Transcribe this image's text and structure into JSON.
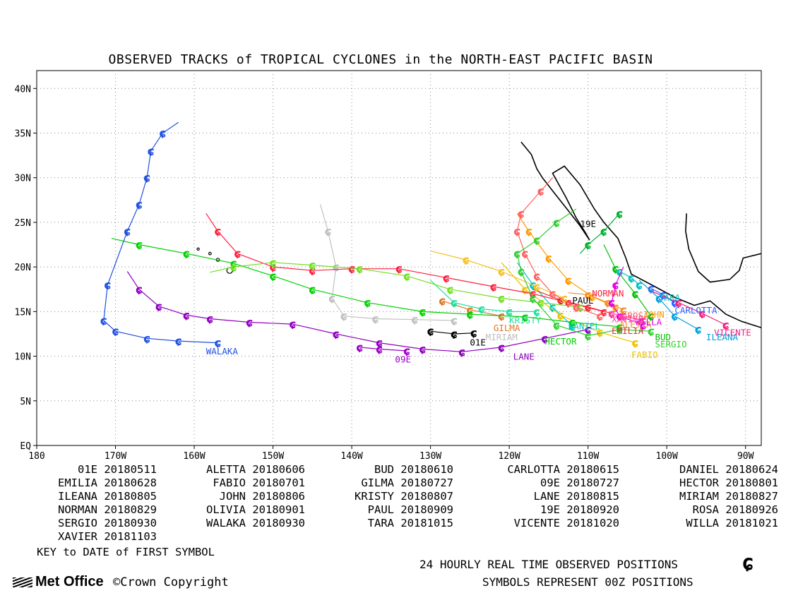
{
  "chart_data": {
    "type": "line",
    "title": "OBSERVED TRACKS of TROPICAL CYCLONES in the NORTH-EAST PACIFIC BASIN",
    "x_ticks": [
      "180",
      "170W",
      "160W",
      "150W",
      "140W",
      "130W",
      "120W",
      "110W",
      "100W",
      "90W"
    ],
    "y_ticks": [
      "EQ",
      "5N",
      "10N",
      "15N",
      "20N",
      "25N",
      "30N",
      "35N",
      "40N"
    ],
    "xlim": [
      -180,
      -88
    ],
    "ylim": [
      0,
      42
    ],
    "grid": true,
    "legend_placement": "below",
    "series": [
      {
        "name": "01E",
        "date": "20180511",
        "color": "#000000",
        "points": [
          [
            -130.0,
            12.8
          ],
          [
            -127.0,
            12.5
          ],
          [
            -124.5,
            12.6
          ]
        ]
      },
      {
        "name": "ALETTA",
        "date": "20180606",
        "color": "#f28c28",
        "points": [
          [
            -105.5,
            15.2
          ],
          [
            -107.5,
            16.0
          ],
          [
            -110.0,
            16.9
          ],
          [
            -112.5,
            17.1
          ]
        ]
      },
      {
        "name": "BUD",
        "date": "20180610",
        "color": "#00c000",
        "points": [
          [
            -102.0,
            14.5
          ],
          [
            -104.0,
            17.0
          ],
          [
            -106.5,
            19.8
          ],
          [
            -108.0,
            22.5
          ]
        ]
      },
      {
        "name": "CARLOTTA",
        "date": "20180615",
        "color": "#3060ff",
        "points": [
          [
            -99.0,
            16.0
          ],
          [
            -100.5,
            16.9
          ],
          [
            -102.0,
            17.6
          ]
        ]
      },
      {
        "name": "DANIEL",
        "date": "20180624",
        "color": "#00c8c8",
        "points": [
          [
            -112.0,
            13.4
          ],
          [
            -114.5,
            15.5
          ],
          [
            -117.0,
            18.0
          ],
          [
            -119.0,
            20.5
          ]
        ]
      },
      {
        "name": "EMILIA",
        "date": "20180628",
        "color": "#e03030",
        "points": [
          [
            -107.0,
            14.8
          ],
          [
            -110.0,
            15.5
          ],
          [
            -113.5,
            16.3
          ],
          [
            -117.0,
            17.5
          ]
        ]
      },
      {
        "name": "FABIO",
        "date": "20180701",
        "color": "#f0c000",
        "points": [
          [
            -104.0,
            11.5
          ],
          [
            -108.5,
            12.7
          ],
          [
            -113.5,
            14.6
          ],
          [
            -118.0,
            17.5
          ],
          [
            -121.0,
            20.5
          ]
        ]
      },
      {
        "name": "GILMA",
        "date": "20180727",
        "color": "#e07828",
        "points": [
          [
            -121.0,
            14.5
          ],
          [
            -125.0,
            15.2
          ],
          [
            -128.5,
            16.2
          ]
        ]
      },
      {
        "name": "09E",
        "date": "20180727",
        "color": "#a000c8",
        "points": [
          [
            -133.0,
            10.6
          ],
          [
            -136.5,
            10.8
          ],
          [
            -139.0,
            11.0
          ]
        ]
      },
      {
        "name": "HECTOR",
        "date": "20180801",
        "color": "#00d000",
        "points": [
          [
            -106.0,
            13.3
          ],
          [
            -112.0,
            13.8
          ],
          [
            -118.0,
            14.4
          ],
          [
            -125.0,
            14.7
          ],
          [
            -131.0,
            15.0
          ],
          [
            -138.0,
            16.0
          ],
          [
            -145.0,
            17.5
          ],
          [
            -150.0,
            19.0
          ],
          [
            -155.0,
            20.4
          ],
          [
            -161.0,
            21.5
          ],
          [
            -167.0,
            22.5
          ],
          [
            -170.5,
            23.2
          ]
        ]
      },
      {
        "name": "ILEANA",
        "date": "20180805",
        "color": "#00a0e0",
        "points": [
          [
            -96.0,
            13.0
          ],
          [
            -99.0,
            14.5
          ],
          [
            -101.0,
            16.5
          ],
          [
            -103.5,
            18.5
          ]
        ]
      },
      {
        "name": "JOHN",
        "date": "20180806",
        "color": "#ff9a00",
        "points": [
          [
            -106.5,
            15.5
          ],
          [
            -109.5,
            16.7
          ],
          [
            -112.5,
            18.5
          ],
          [
            -115.0,
            21.0
          ],
          [
            -117.5,
            24.0
          ],
          [
            -119.0,
            26.0
          ]
        ]
      },
      {
        "name": "KRISTY",
        "date": "20180807",
        "color": "#20e0a0",
        "points": [
          [
            -116.5,
            15.0
          ],
          [
            -120.0,
            15.0
          ],
          [
            -123.5,
            15.3
          ],
          [
            -127.0,
            16.0
          ],
          [
            -130.0,
            18.5
          ]
        ]
      },
      {
        "name": "LANE",
        "date": "20180815",
        "color": "#9000c0",
        "points": [
          [
            -110.0,
            13.0
          ],
          [
            -115.5,
            12.0
          ],
          [
            -121.0,
            11.0
          ],
          [
            -126.0,
            10.5
          ],
          [
            -131.0,
            10.8
          ],
          [
            -136.5,
            11.5
          ],
          [
            -142.0,
            12.5
          ],
          [
            -147.5,
            13.6
          ],
          [
            -153.0,
            13.8
          ],
          [
            -158.0,
            14.2
          ],
          [
            -161.0,
            14.6
          ],
          [
            -164.5,
            15.6
          ],
          [
            -167.0,
            17.5
          ],
          [
            -168.5,
            19.5
          ]
        ]
      },
      {
        "name": "MIRIAM",
        "date": "20180827",
        "color": "#c0c0c0",
        "points": [
          [
            -127.0,
            14.0
          ],
          [
            -132.0,
            14.1
          ],
          [
            -137.0,
            14.2
          ],
          [
            -141.0,
            14.5
          ],
          [
            -142.5,
            16.5
          ],
          [
            -142.0,
            20.0
          ],
          [
            -143.0,
            24.0
          ],
          [
            -144.0,
            27.0
          ]
        ]
      },
      {
        "name": "NORMAN",
        "date": "20180829",
        "color": "#ff2040",
        "points": [
          [
            -108.0,
            15.0
          ],
          [
            -112.5,
            16.0
          ],
          [
            -117.0,
            17.0
          ],
          [
            -122.0,
            17.8
          ],
          [
            -128.0,
            18.8
          ],
          [
            -134.0,
            19.8
          ],
          [
            -140.0,
            19.8
          ],
          [
            -145.0,
            19.6
          ],
          [
            -150.0,
            20.0
          ],
          [
            -154.5,
            21.5
          ],
          [
            -157.0,
            24.0
          ],
          [
            -158.5,
            26.0
          ]
        ]
      },
      {
        "name": "OLIVIA",
        "date": "20180901",
        "color": "#70e020",
        "points": [
          [
            -111.0,
            15.5
          ],
          [
            -116.0,
            16.0
          ],
          [
            -121.0,
            16.5
          ],
          [
            -127.5,
            17.5
          ],
          [
            -133.0,
            19.0
          ],
          [
            -139.0,
            19.8
          ],
          [
            -145.0,
            20.2
          ],
          [
            -150.0,
            20.5
          ],
          [
            -155.0,
            20.0
          ],
          [
            -158.0,
            19.4
          ]
        ]
      },
      {
        "name": "PAUL",
        "date": "20180909",
        "color": "#f4c020",
        "points": [
          [
            -113.0,
            16.5
          ],
          [
            -116.5,
            17.8
          ],
          [
            -121.0,
            19.5
          ],
          [
            -125.5,
            20.8
          ],
          [
            -130.0,
            21.8
          ]
        ]
      },
      {
        "name": "19E",
        "date": "20180920",
        "color": "#00b030",
        "points": [
          [
            -106.0,
            26.0
          ],
          [
            -108.0,
            24.0
          ],
          [
            -110.0,
            22.5
          ],
          [
            -111.0,
            21.5
          ]
        ]
      },
      {
        "name": "ROSA",
        "date": "20180926",
        "color": "#ff6060",
        "points": [
          [
            -108.5,
            14.5
          ],
          [
            -111.5,
            15.5
          ],
          [
            -114.5,
            17.0
          ],
          [
            -116.5,
            19.0
          ],
          [
            -118.0,
            21.5
          ],
          [
            -119.0,
            24.0
          ],
          [
            -118.5,
            26.0
          ],
          [
            -116.0,
            28.5
          ],
          [
            -114.5,
            30.0
          ]
        ]
      },
      {
        "name": "SERGIO",
        "date": "20180930",
        "color": "#30d030",
        "points": [
          [
            -102.0,
            12.8
          ],
          [
            -106.0,
            13.0
          ],
          [
            -110.0,
            12.3
          ],
          [
            -114.0,
            13.5
          ],
          [
            -117.0,
            16.5
          ],
          [
            -118.5,
            19.5
          ],
          [
            -119.0,
            21.5
          ],
          [
            -116.5,
            23.0
          ],
          [
            -114.0,
            25.0
          ],
          [
            -111.5,
            26.5
          ]
        ]
      },
      {
        "name": "WALAKA",
        "date": "20180930",
        "color": "#2050e0",
        "points": [
          [
            -157.0,
            11.5
          ],
          [
            -162.0,
            11.7
          ],
          [
            -166.0,
            12.0
          ],
          [
            -170.0,
            12.8
          ],
          [
            -171.5,
            14.0
          ],
          [
            -171.0,
            18.0
          ],
          [
            -168.5,
            24.0
          ],
          [
            -167.0,
            27.0
          ],
          [
            -166.0,
            30.0
          ],
          [
            -165.5,
            33.0
          ],
          [
            -164.0,
            35.0
          ],
          [
            -162.0,
            36.2
          ]
        ]
      },
      {
        "name": "TARA",
        "date": "20181015",
        "color": "#00c0c0",
        "points": [
          [
            -103.5,
            18.0
          ],
          [
            -104.5,
            18.8
          ],
          [
            -106.0,
            19.5
          ]
        ]
      },
      {
        "name": "VICENTE",
        "date": "20181020",
        "color": "#f02080",
        "points": [
          [
            -92.5,
            13.5
          ],
          [
            -95.5,
            14.8
          ],
          [
            -98.5,
            16.0
          ],
          [
            -102.0,
            17.3
          ]
        ]
      },
      {
        "name": "WILLA",
        "date": "20181021",
        "color": "#e000e0",
        "points": [
          [
            -103.0,
            13.5
          ],
          [
            -106.0,
            14.5
          ],
          [
            -107.0,
            16.0
          ],
          [
            -106.5,
            18.0
          ],
          [
            -105.5,
            20.0
          ]
        ]
      },
      {
        "name": "XAVIER",
        "date": "20181103",
        "color": "#ff40a0",
        "points": [
          [
            -103.0,
            14.0
          ],
          [
            -105.5,
            14.5
          ],
          [
            -107.0,
            14.8
          ]
        ]
      }
    ],
    "track_labels": [
      {
        "text": "WALAKA",
        "lon": -158.5,
        "lat": 10.2,
        "color": "#2050e0"
      },
      {
        "text": "09E",
        "lon": -134.5,
        "lat": 9.3,
        "color": "#a000c8"
      },
      {
        "text": "01E",
        "lon": -125.0,
        "lat": 11.2,
        "color": "#000000"
      },
      {
        "text": "LANE",
        "lon": -119.5,
        "lat": 9.6,
        "color": "#9000c0"
      },
      {
        "text": "MIRIAM",
        "lon": -123.0,
        "lat": 11.8,
        "color": "#c0c0c0"
      },
      {
        "text": "GILMA",
        "lon": -122.0,
        "lat": 12.8,
        "color": "#e07828"
      },
      {
        "text": "KRISTY",
        "lon": -120.0,
        "lat": 13.7,
        "color": "#20e0a0"
      },
      {
        "text": "HECTOR",
        "lon": -115.5,
        "lat": 11.3,
        "color": "#00d000"
      },
      {
        "text": "DANIEL",
        "lon": -112.5,
        "lat": 13.0,
        "color": "#00c8c8"
      },
      {
        "text": "PAUL",
        "lon": -112.0,
        "lat": 15.9,
        "color": "#000000"
      },
      {
        "text": "NORMAN",
        "lon": -109.5,
        "lat": 16.7,
        "color": "#ff2040"
      },
      {
        "text": "EMILIA",
        "lon": -107.0,
        "lat": 12.5,
        "color": "#e03030"
      },
      {
        "text": "XAVIER",
        "lon": -107.0,
        "lat": 13.8,
        "color": "#ff40a0"
      },
      {
        "text": "ROSA",
        "lon": -105.0,
        "lat": 14.2,
        "color": "#ff6060"
      },
      {
        "text": "ALETTA",
        "lon": -106.0,
        "lat": 13.2,
        "color": "#f28c28"
      },
      {
        "text": "JOHN",
        "lon": -103.0,
        "lat": 14.3,
        "color": "#ff9a00"
      },
      {
        "text": "WILLA",
        "lon": -104.0,
        "lat": 13.5,
        "color": "#e000e0"
      },
      {
        "text": "BUD",
        "lon": -101.5,
        "lat": 11.8,
        "color": "#00c000"
      },
      {
        "text": "SERGIO",
        "lon": -101.5,
        "lat": 11.0,
        "color": "#30d030"
      },
      {
        "text": "FABIO",
        "lon": -104.5,
        "lat": 9.8,
        "color": "#f0c000"
      },
      {
        "text": "TARA",
        "lon": -101.0,
        "lat": 16.2,
        "color": "#00c0c0"
      },
      {
        "text": "CARLOTTA",
        "lon": -99.0,
        "lat": 14.8,
        "color": "#3060ff"
      },
      {
        "text": "ILEANA",
        "lon": -95.0,
        "lat": 11.8,
        "color": "#00a0e0"
      },
      {
        "text": "VICENTE",
        "lon": -94.0,
        "lat": 12.3,
        "color": "#f02080"
      },
      {
        "text": "19E",
        "lon": -111.0,
        "lat": 24.5,
        "color": "#000000"
      }
    ]
  },
  "legend": {
    "rows": [
      [
        [
          "01E",
          "20180511"
        ],
        [
          "ALETTA",
          "20180606"
        ],
        [
          "BUD",
          "20180610"
        ],
        [
          "CARLOTTA",
          "20180615"
        ],
        [
          "DANIEL",
          "20180624"
        ]
      ],
      [
        [
          "EMILIA",
          "20180628"
        ],
        [
          "FABIO",
          "20180701"
        ],
        [
          "GILMA",
          "20180727"
        ],
        [
          "09E",
          "20180727"
        ],
        [
          "HECTOR",
          "20180801"
        ]
      ],
      [
        [
          "ILEANA",
          "20180805"
        ],
        [
          "JOHN",
          "20180806"
        ],
        [
          "KRISTY",
          "20180807"
        ],
        [
          "LANE",
          "20180815"
        ],
        [
          "MIRIAM",
          "20180827"
        ]
      ],
      [
        [
          "NORMAN",
          "20180829"
        ],
        [
          "OLIVIA",
          "20180901"
        ],
        [
          "PAUL",
          "20180909"
        ],
        [
          "19E",
          "20180920"
        ],
        [
          "ROSA",
          "20180926"
        ]
      ],
      [
        [
          "SERGIO",
          "20180930"
        ],
        [
          "WALAKA",
          "20180930"
        ],
        [
          "TARA",
          "20181015"
        ],
        [
          "VICENTE",
          "20181020"
        ],
        [
          "WILLA",
          "20181021"
        ]
      ],
      [
        [
          "XAVIER",
          "20181103"
        ]
      ]
    ]
  },
  "key_text": "KEY to DATE of FIRST SYMBOL",
  "footer": {
    "line1": "24 HOURLY REAL TIME OBSERVED POSITIONS",
    "line2": "SYMBOLS REPRESENT 00Z POSITIONS",
    "logo": "Met Office",
    "copyright": "©Crown Copyright"
  },
  "symbol_glyph": "ɕ"
}
